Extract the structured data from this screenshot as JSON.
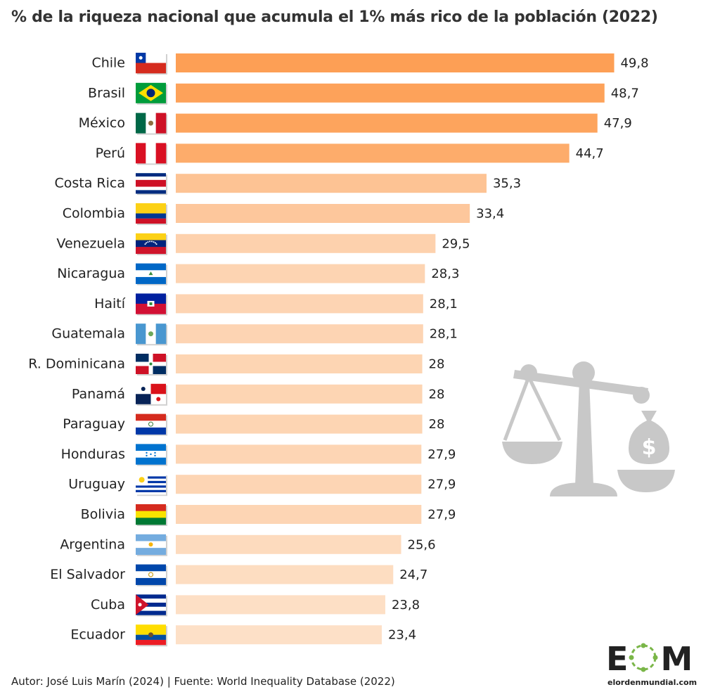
{
  "chart_data": {
    "type": "bar",
    "orientation": "horizontal",
    "title": "% de la riqueza nacional que acumula el 1% más rico de la población (2022)",
    "categories": [
      "Chile",
      "Brasil",
      "México",
      "Perú",
      "Costa Rica",
      "Colombia",
      "Venezuela",
      "Nicaragua",
      "Haití",
      "Guatemala",
      "R. Dominicana",
      "Panamá",
      "Paraguay",
      "Honduras",
      "Uruguay",
      "Bolivia",
      "Argentina",
      "El Salvador",
      "Cuba",
      "Ecuador"
    ],
    "values": [
      49.8,
      48.7,
      47.9,
      44.7,
      35.3,
      33.4,
      29.5,
      28.3,
      28.1,
      28.1,
      28,
      28,
      28,
      27.9,
      27.9,
      27.9,
      25.6,
      24.7,
      23.8,
      23.4
    ],
    "value_labels": [
      "49,8",
      "48,7",
      "47,9",
      "44,7",
      "35,3",
      "33,4",
      "29,5",
      "28,3",
      "28,1",
      "28,1",
      "28",
      "28",
      "28",
      "27,9",
      "27,9",
      "27,9",
      "25,6",
      "24,7",
      "23,8",
      "23,4"
    ],
    "flags": [
      "chile",
      "brazil",
      "mexico",
      "peru",
      "costa-rica",
      "colombia",
      "venezuela",
      "nicaragua",
      "haiti",
      "guatemala",
      "dominican-republic",
      "panama",
      "paraguay",
      "honduras",
      "uruguay",
      "bolivia",
      "argentina",
      "el-salvador",
      "cuba",
      "ecuador"
    ],
    "bar_color_max": "#fd9f55",
    "bar_color_min": "#fde0c7",
    "xlim": [
      0,
      50
    ]
  },
  "footer": "Autor: José Luis Marín  (2024) | Fuente: World Inequality Database (2022)",
  "logo": {
    "letters": "EOM",
    "url": "elordenmundial.com",
    "accent": "#7ab648"
  },
  "icon": "scale-with-money-bag-icon"
}
